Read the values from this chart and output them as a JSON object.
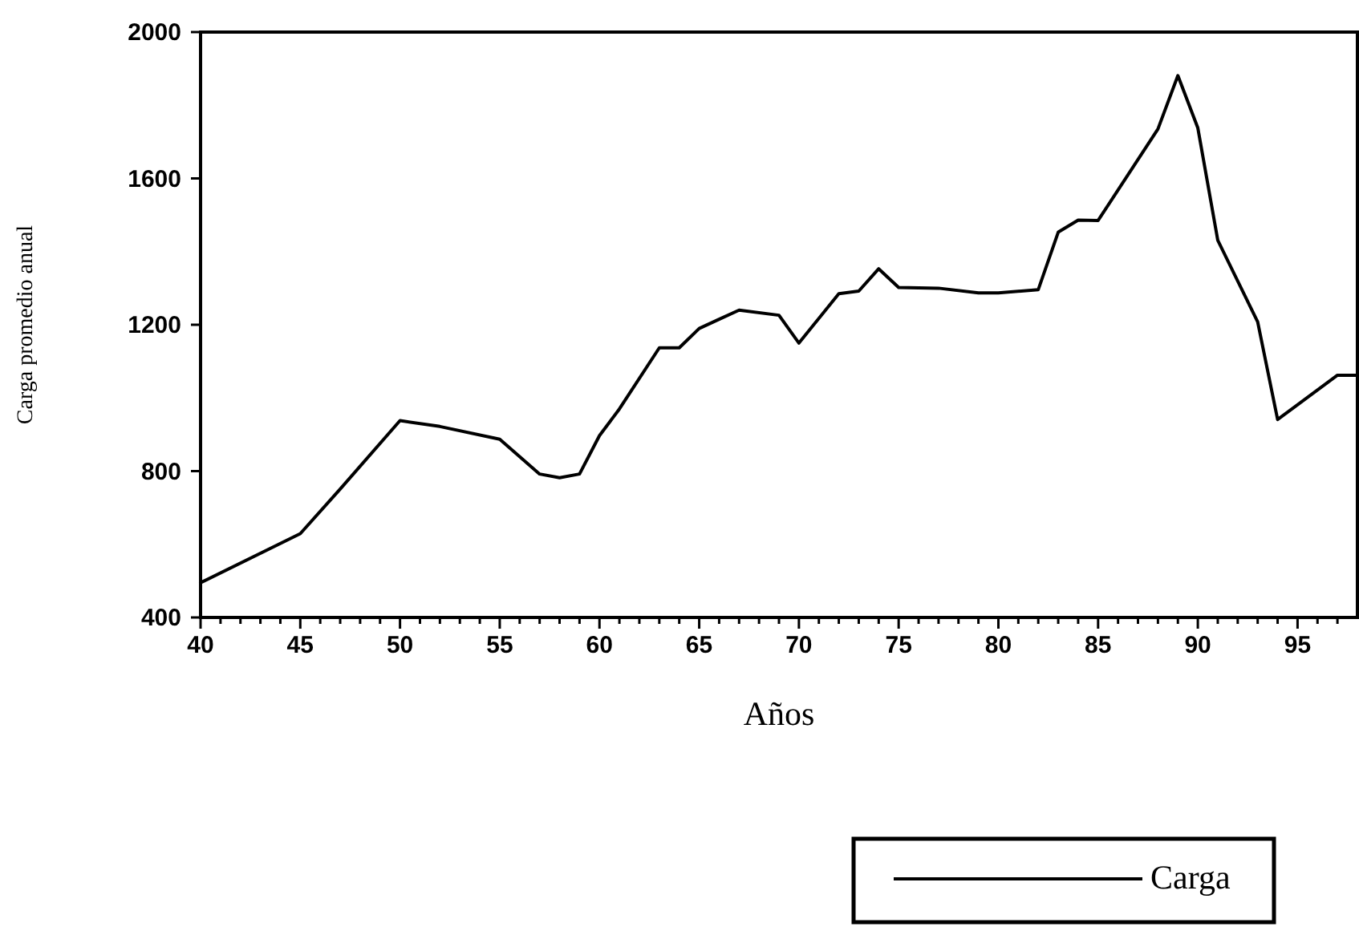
{
  "chart_data": {
    "type": "line",
    "xlabel": "Años",
    "ylabel": "Carga promedio anual",
    "x": [
      40,
      45,
      47,
      50,
      52,
      55,
      57,
      58,
      59,
      60,
      61,
      63,
      64,
      65,
      66,
      67,
      69,
      70,
      72,
      73,
      74,
      75,
      77,
      79,
      80,
      82,
      83,
      84,
      85,
      88,
      89,
      90,
      91,
      93,
      94,
      97,
      98
    ],
    "series": [
      {
        "name": "Carga",
        "color": "#000000",
        "values": [
          495,
          629,
          751,
          938,
          922,
          887,
          792,
          782,
          792,
          897,
          970,
          1137,
          1137,
          1190,
          1215,
          1240,
          1226,
          1150,
          1285,
          1292,
          1353,
          1302,
          1300,
          1287,
          1287,
          1296,
          1453,
          1486,
          1485,
          1735,
          1881,
          1738,
          1431,
          1208,
          941,
          1062,
          1062
        ]
      }
    ],
    "xlim": [
      40,
      98
    ],
    "ylim": [
      400,
      2000
    ],
    "xticks": [
      40,
      {
        "value": 41,
        "label": null
      },
      {
        "value": 42,
        "label": null
      },
      {
        "value": 43,
        "label": null
      },
      {
        "value": 44,
        "label": null
      },
      45,
      {
        "value": 46,
        "label": null
      },
      {
        "value": 47,
        "label": null
      },
      {
        "value": 48,
        "label": null
      },
      {
        "value": 49,
        "label": null
      },
      50,
      {
        "value": 51,
        "label": null
      },
      {
        "value": 52,
        "label": null
      },
      {
        "value": 53,
        "label": null
      },
      {
        "value": 54,
        "label": null
      },
      55,
      {
        "value": 56,
        "label": null
      },
      {
        "value": 57,
        "label": null
      },
      {
        "value": 58,
        "label": null
      },
      {
        "value": 59,
        "label": null
      },
      60,
      {
        "value": 61,
        "label": null
      },
      {
        "value": 62,
        "label": null
      },
      {
        "value": 63,
        "label": null
      },
      {
        "value": 64,
        "label": null
      },
      65,
      {
        "value": 66,
        "label": null
      },
      {
        "value": 67,
        "label": null
      },
      {
        "value": 68,
        "label": null
      },
      {
        "value": 69,
        "label": null
      },
      70,
      {
        "value": 71,
        "label": null
      },
      {
        "value": 72,
        "label": null
      },
      {
        "value": 73,
        "label": null
      },
      {
        "value": 74,
        "label": null
      },
      75,
      {
        "value": 76,
        "label": null
      },
      {
        "value": 77,
        "label": null
      },
      {
        "value": 78,
        "label": null
      },
      {
        "value": 79,
        "label": null
      },
      80,
      {
        "value": 81,
        "label": null
      },
      {
        "value": 82,
        "label": null
      },
      {
        "value": 83,
        "label": null
      },
      {
        "value": 84,
        "label": null
      },
      85,
      {
        "value": 86,
        "label": null
      },
      {
        "value": 87,
        "label": null
      },
      {
        "value": 88,
        "label": null
      },
      {
        "value": 89,
        "label": null
      },
      90,
      {
        "value": 91,
        "label": null
      },
      {
        "value": 92,
        "label": null
      },
      {
        "value": 93,
        "label": null
      },
      {
        "value": 94,
        "label": null
      },
      95,
      {
        "value": 96,
        "label": null
      },
      {
        "value": 97,
        "label": null
      }
    ],
    "yticks": [
      400,
      800,
      1200,
      1600,
      2000
    ],
    "grid": false,
    "legend": "bottom right",
    "marker": "none",
    "line_style": "solid"
  }
}
